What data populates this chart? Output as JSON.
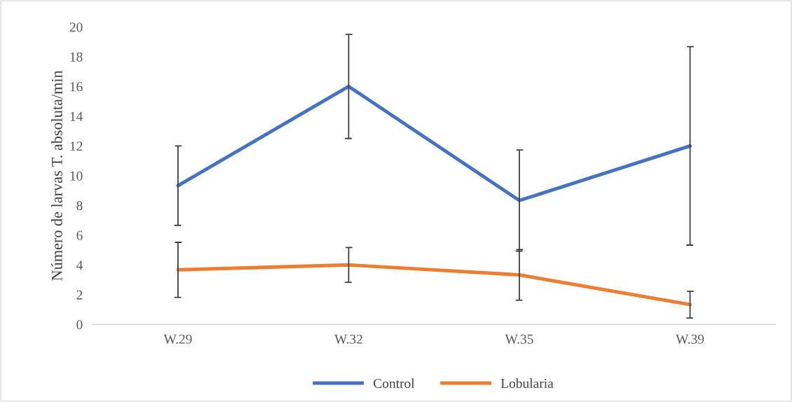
{
  "chart_data": {
    "type": "line",
    "ylabel": "Número de larvas T. absoluta/min",
    "categories": [
      "W.29",
      "W.32",
      "W.35",
      "W.39"
    ],
    "ylim": [
      0,
      20
    ],
    "yticks": [
      0,
      2,
      4,
      6,
      8,
      10,
      12,
      14,
      16,
      18,
      20
    ],
    "grid": false,
    "legend": "bottom",
    "marker": "none",
    "line_style": "solid",
    "series": [
      {
        "name": "Control",
        "color": "#4472c4",
        "values": [
          9.33,
          16,
          8.33,
          12
        ],
        "errors": [
          2.67,
          3.5,
          3.4,
          6.67
        ]
      },
      {
        "name": "Lobularia",
        "color": "#ed7d31",
        "values": [
          3.67,
          4,
          3.33,
          1.33
        ],
        "errors": [
          1.85,
          1.17,
          1.7,
          0.9
        ]
      }
    ]
  }
}
